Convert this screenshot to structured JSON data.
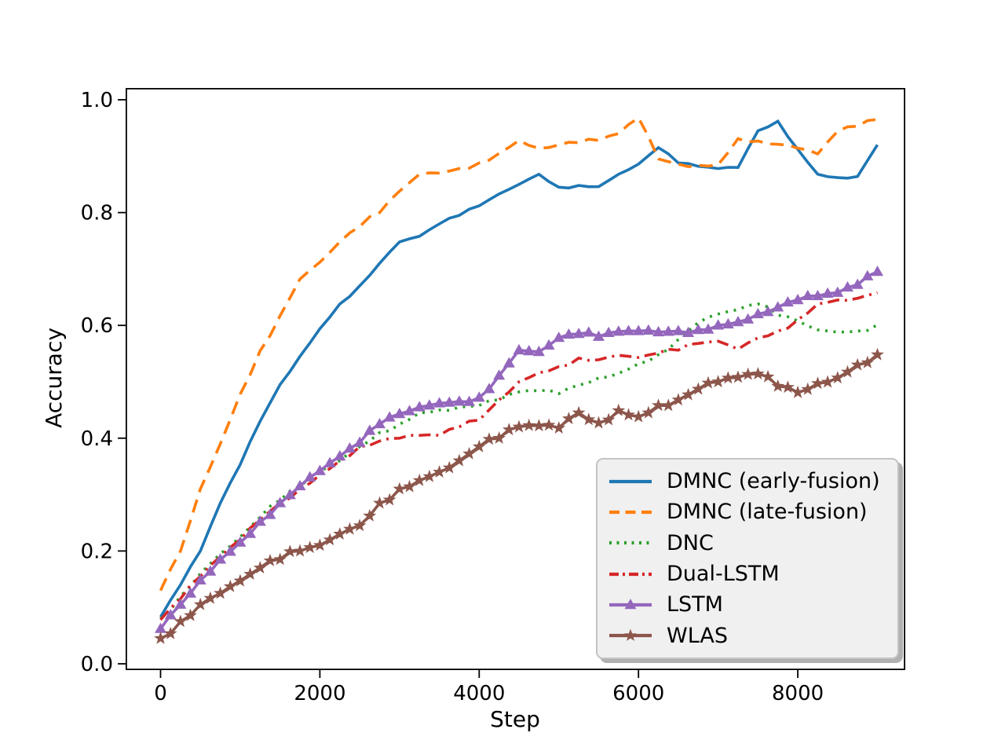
{
  "figure": {
    "background": "#ffffff"
  },
  "chart_data": {
    "type": "line",
    "title": "",
    "xlabel": "Step",
    "ylabel": "Accuracy",
    "x_ticks": [
      0,
      2000,
      4000,
      6000,
      8000
    ],
    "y_ticks": [
      0.0,
      0.2,
      0.4,
      0.6,
      0.8,
      1.0
    ],
    "xlim": [
      -440,
      9350
    ],
    "ylim": [
      -0.012,
      1.022
    ],
    "grid": false,
    "legend": {
      "position": "lower-right-inside",
      "shadow": true,
      "facecolor": "#f0f0f0",
      "edgecolor": "#c3c3c3"
    },
    "x": [
      0,
      250,
      500,
      750,
      1000,
      1250,
      1500,
      1750,
      2000,
      2250,
      2500,
      2750,
      3000,
      3250,
      3500,
      3750,
      4000,
      4250,
      4500,
      4750,
      5000,
      5250,
      5500,
      5750,
      6000,
      6250,
      6500,
      6750,
      7000,
      7250,
      7500,
      7750,
      8000,
      8250,
      8500,
      8750,
      9000
    ],
    "series": [
      {
        "name": "DMNC (early-fusion)",
        "color": "#1f77b4",
        "style": "solid",
        "marker": null,
        "values": [
          0.083,
          0.14,
          0.2,
          0.285,
          0.353,
          0.43,
          0.495,
          0.545,
          0.594,
          0.638,
          0.67,
          0.71,
          0.748,
          0.758,
          0.78,
          0.795,
          0.812,
          0.833,
          0.85,
          0.868,
          0.845,
          0.848,
          0.846,
          0.868,
          0.886,
          0.915,
          0.888,
          0.882,
          0.878,
          0.88,
          0.945,
          0.962,
          0.912,
          0.868,
          0.862,
          0.864,
          0.92
        ]
      },
      {
        "name": "DMNC (late-fusion)",
        "color": "#ff7f0e",
        "style": "dashed",
        "marker": null,
        "values": [
          0.13,
          0.2,
          0.31,
          0.39,
          0.478,
          0.555,
          0.617,
          0.682,
          0.712,
          0.748,
          0.775,
          0.8,
          0.838,
          0.868,
          0.87,
          0.878,
          0.888,
          0.905,
          0.928,
          0.914,
          0.92,
          0.924,
          0.928,
          0.94,
          0.968,
          0.895,
          0.886,
          0.884,
          0.885,
          0.931,
          0.927,
          0.921,
          0.914,
          0.904,
          0.944,
          0.953,
          0.965
        ]
      },
      {
        "name": "DNC",
        "color": "#2ca02c",
        "style": "dotted",
        "marker": null,
        "values": [
          0.08,
          0.12,
          0.16,
          0.195,
          0.225,
          0.26,
          0.29,
          0.315,
          0.34,
          0.36,
          0.385,
          0.41,
          0.425,
          0.445,
          0.45,
          0.455,
          0.458,
          0.468,
          0.482,
          0.484,
          0.479,
          0.494,
          0.507,
          0.515,
          0.532,
          0.548,
          0.575,
          0.605,
          0.62,
          0.628,
          0.638,
          0.618,
          0.608,
          0.592,
          0.588,
          0.59,
          0.601
        ]
      },
      {
        "name": "Dual-LSTM",
        "color": "#d62728",
        "style": "dashdot",
        "marker": null,
        "values": [
          0.078,
          0.115,
          0.155,
          0.19,
          0.22,
          0.255,
          0.285,
          0.31,
          0.335,
          0.36,
          0.385,
          0.395,
          0.4,
          0.405,
          0.405,
          0.42,
          0.432,
          0.468,
          0.5,
          0.516,
          0.527,
          0.542,
          0.539,
          0.547,
          0.543,
          0.551,
          0.556,
          0.568,
          0.572,
          0.558,
          0.578,
          0.59,
          0.61,
          0.638,
          0.645,
          0.648,
          0.658
        ]
      },
      {
        "name": "LSTM",
        "color": "#9467bd",
        "style": "solid",
        "marker": "triangle_up",
        "values": [
          0.062,
          0.105,
          0.148,
          0.185,
          0.215,
          0.252,
          0.285,
          0.315,
          0.342,
          0.368,
          0.392,
          0.425,
          0.443,
          0.455,
          0.462,
          0.465,
          0.472,
          0.511,
          0.556,
          0.553,
          0.578,
          0.585,
          0.58,
          0.589,
          0.59,
          0.588,
          0.59,
          0.592,
          0.6,
          0.606,
          0.62,
          0.632,
          0.645,
          0.652,
          0.658,
          0.672,
          0.695
        ]
      },
      {
        "name": "WLAS",
        "color": "#8c564b",
        "style": "solid",
        "marker": "star",
        "values": [
          0.045,
          0.075,
          0.105,
          0.125,
          0.147,
          0.17,
          0.185,
          0.2,
          0.21,
          0.23,
          0.245,
          0.285,
          0.31,
          0.325,
          0.34,
          0.36,
          0.385,
          0.4,
          0.42,
          0.422,
          0.418,
          0.445,
          0.427,
          0.449,
          0.438,
          0.458,
          0.468,
          0.487,
          0.5,
          0.508,
          0.514,
          0.492,
          0.481,
          0.497,
          0.507,
          0.53,
          0.548
        ]
      }
    ]
  }
}
